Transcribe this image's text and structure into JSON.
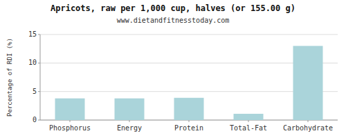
{
  "chart_data": {
    "type": "bar",
    "title": "Apricots, raw per 1,000 cup, halves (or 155.00 g)",
    "subtitle": "www.dietandfitnesstoday.com",
    "categories": [
      "Phosphorus",
      "Energy",
      "Protein",
      "Total-Fat",
      "Carbohydrate"
    ],
    "values": [
      3.8,
      3.8,
      3.9,
      1.1,
      13.0
    ],
    "color": "#aad4da",
    "ylabel": "Percentage of RDI (%)",
    "ylim": [
      0,
      15
    ],
    "yticks": [
      0,
      5,
      10,
      15
    ],
    "grid": true
  }
}
